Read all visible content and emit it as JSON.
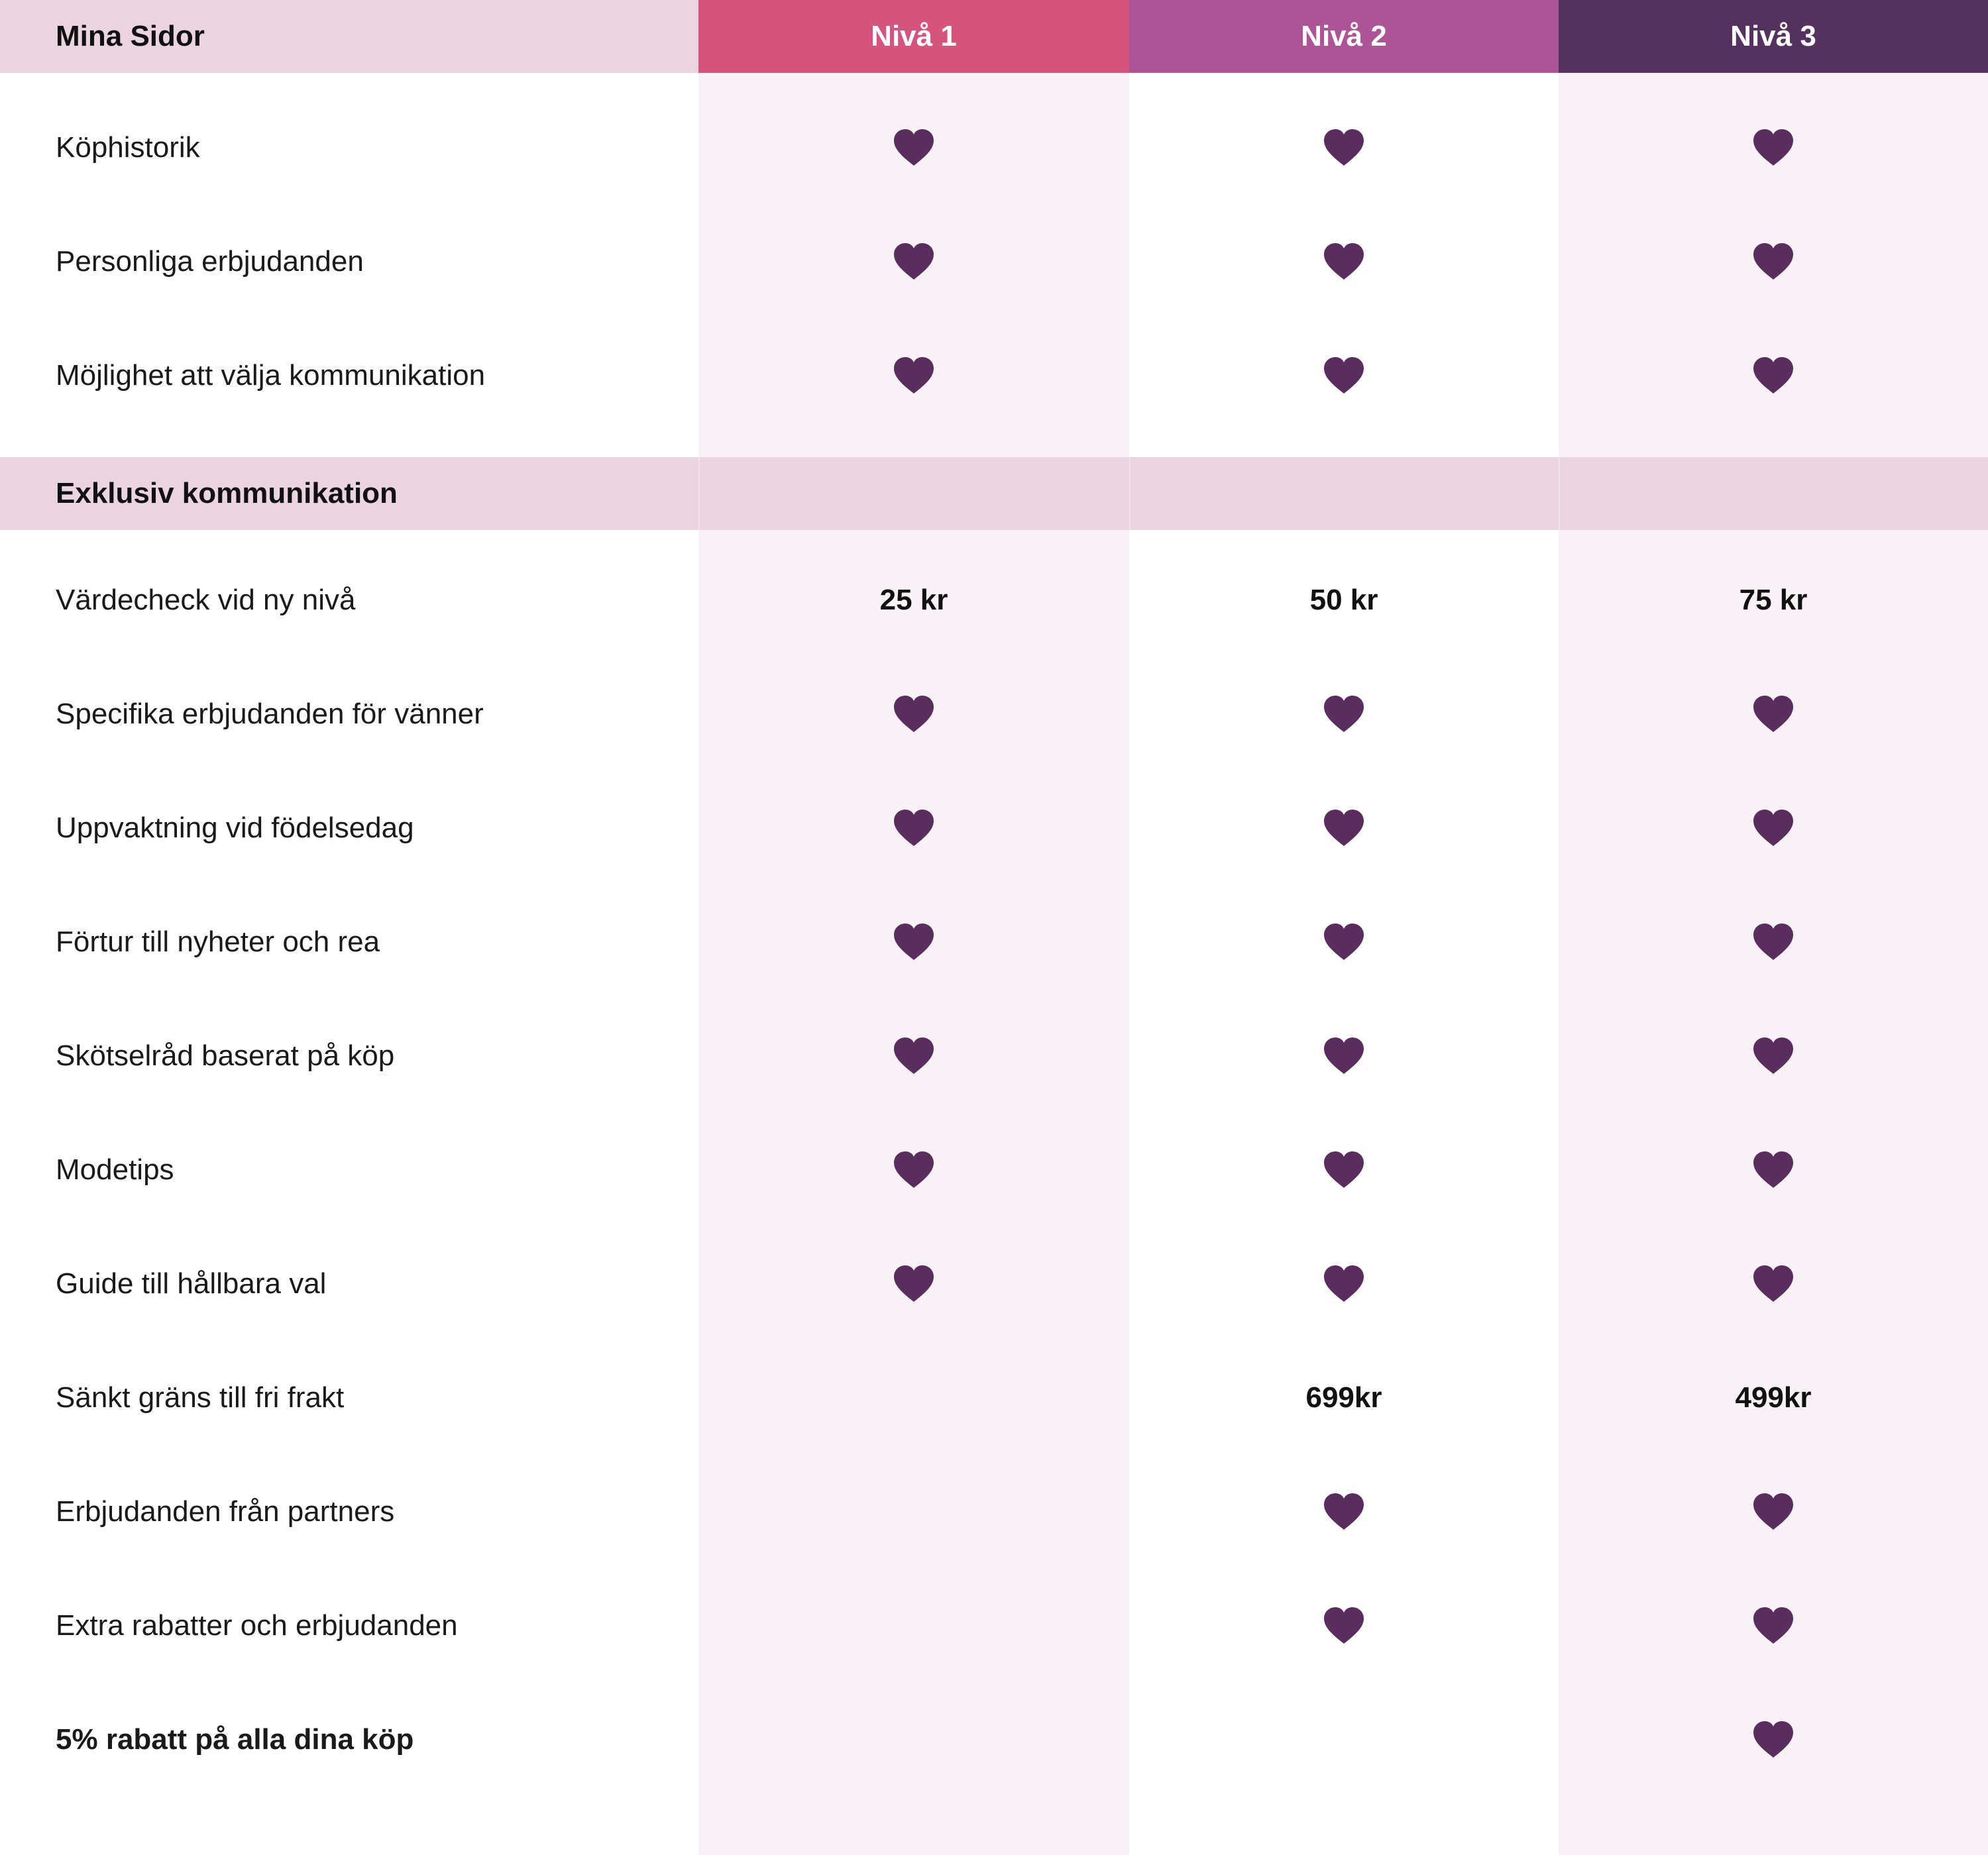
{
  "header": {
    "title": "Mina Sidor",
    "tiers": [
      "Nivå 1",
      "Nivå 2",
      "Nivå 3"
    ]
  },
  "colors": {
    "tier1": "#d4547d",
    "tier2": "#ad5497",
    "tier3": "#54315f",
    "band": "#ebd3e0",
    "heart": "#5a2d5f"
  },
  "icons": {
    "check": "heart-icon"
  },
  "mina_sidor_rows": [
    {
      "label": "Köphistorik",
      "values": [
        "heart",
        "heart",
        "heart"
      ]
    },
    {
      "label": "Personliga erbjudanden",
      "values": [
        "heart",
        "heart",
        "heart"
      ]
    },
    {
      "label": "Möjlighet att välja kommunikation",
      "values": [
        "heart",
        "heart",
        "heart"
      ]
    }
  ],
  "section": {
    "title": "Exklusiv kommunikation"
  },
  "exclusive_rows": [
    {
      "label": "Värdecheck vid ny nivå",
      "values": [
        "25 kr",
        "50 kr",
        "75 kr"
      ]
    },
    {
      "label": "Specifika erbjudanden för vänner",
      "values": [
        "heart",
        "heart",
        "heart"
      ]
    },
    {
      "label": "Uppvaktning vid födelsedag",
      "values": [
        "heart",
        "heart",
        "heart"
      ]
    },
    {
      "label": "Förtur till nyheter och rea",
      "values": [
        "heart",
        "heart",
        "heart"
      ]
    },
    {
      "label": "Skötselråd baserat på köp",
      "values": [
        "heart",
        "heart",
        "heart"
      ]
    },
    {
      "label": "Modetips",
      "values": [
        "heart",
        "heart",
        "heart"
      ]
    },
    {
      "label": "Guide till hållbara val",
      "values": [
        "heart",
        "heart",
        "heart"
      ]
    },
    {
      "label": "Sänkt gräns till fri frakt",
      "values": [
        "",
        "699kr",
        "499kr"
      ]
    },
    {
      "label": "Erbjudanden från partners",
      "values": [
        "",
        "heart",
        "heart"
      ]
    },
    {
      "label": "Extra rabatter och erbjudanden",
      "values": [
        "",
        "heart",
        "heart"
      ]
    },
    {
      "label": "5% rabatt på alla dina köp",
      "values": [
        "",
        "",
        "heart"
      ],
      "bold": true
    }
  ]
}
